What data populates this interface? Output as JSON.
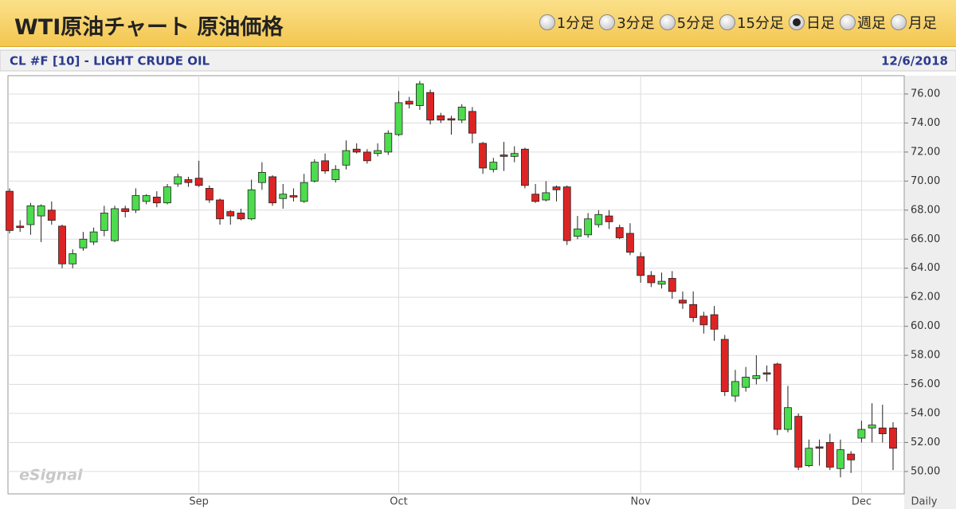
{
  "header": {
    "title": "WTI原油チャート 原油価格",
    "options": [
      "1分足",
      "3分足",
      "5分足",
      "15分足",
      "日足",
      "週足",
      "月足"
    ],
    "selected": 4
  },
  "chart_data": {
    "type": "candlestick",
    "title": "CL #F [10] - LIGHT CRUDE OIL",
    "date": "12/6/2018",
    "xlabel": "Daily",
    "watermark": "eSignal",
    "categories": [
      null,
      null,
      null,
      null,
      null,
      null,
      null,
      null,
      null,
      null,
      null,
      null,
      null,
      null,
      null,
      null,
      null,
      null,
      "Sep",
      null,
      null,
      null,
      null,
      null,
      null,
      null,
      null,
      null,
      null,
      null,
      null,
      null,
      null,
      null,
      null,
      null,
      null,
      "Oct",
      null,
      null,
      null,
      null,
      null,
      null,
      null,
      null,
      null,
      null,
      null,
      null,
      null,
      null,
      null,
      null,
      null,
      null,
      null,
      null,
      null,
      null,
      "Nov",
      null,
      null,
      null,
      null,
      null,
      null,
      null,
      null,
      null,
      null,
      null,
      null,
      null,
      null,
      null,
      null,
      null,
      null,
      null,
      null,
      "Dec",
      null,
      null,
      null
    ],
    "open": [
      69.3,
      66.9,
      67.0,
      67.6,
      68.0,
      66.9,
      64.3,
      65.4,
      65.8,
      66.6,
      65.9,
      68.1,
      68.0,
      68.6,
      68.9,
      68.5,
      69.8,
      70.1,
      70.2,
      69.5,
      68.7,
      67.9,
      67.8,
      67.4,
      69.9,
      70.3,
      68.8,
      69.0,
      68.6,
      70.0,
      71.4,
      70.1,
      71.1,
      72.2,
      72.0,
      71.9,
      72.0,
      73.2,
      75.5,
      75.2,
      76.1,
      74.5,
      74.3,
      74.2,
      74.8,
      72.6,
      70.8,
      71.8,
      71.7,
      72.2,
      69.1,
      68.7,
      69.6,
      69.6,
      66.2,
      66.3,
      67.0,
      67.6,
      66.8,
      66.4,
      64.8,
      63.5,
      62.9,
      63.3,
      61.8,
      61.5,
      60.7,
      60.8,
      59.1,
      55.2,
      55.8,
      56.4,
      56.8,
      57.4,
      52.9,
      53.8,
      50.4,
      51.7,
      52.0,
      50.2,
      51.2,
      52.3,
      53.0,
      53.0,
      53.0
    ],
    "high": [
      69.5,
      67.3,
      68.5,
      68.4,
      68.6,
      67.0,
      65.3,
      66.5,
      66.8,
      68.3,
      68.3,
      68.3,
      69.5,
      69.1,
      69.3,
      69.8,
      70.5,
      70.3,
      71.4,
      69.7,
      68.8,
      68.0,
      68.1,
      70.1,
      71.3,
      70.4,
      69.8,
      69.5,
      70.5,
      71.5,
      71.9,
      71.1,
      72.8,
      72.6,
      72.2,
      72.6,
      73.5,
      76.2,
      75.8,
      76.9,
      76.3,
      74.7,
      74.5,
      75.3,
      75.1,
      72.7,
      71.6,
      72.7,
      72.4,
      72.3,
      69.8,
      70.0,
      69.7,
      69.7,
      67.6,
      67.8,
      68.0,
      68.0,
      67.0,
      67.1,
      65.1,
      63.8,
      63.7,
      63.8,
      62.4,
      62.4,
      61.0,
      61.4,
      59.4,
      57.0,
      57.2,
      58.0,
      57.3,
      57.5,
      55.9,
      54.0,
      52.2,
      52.2,
      52.6,
      52.2,
      51.4,
      53.5,
      54.7,
      54.6,
      53.4
    ],
    "low": [
      66.4,
      66.5,
      66.3,
      65.8,
      67.0,
      64.0,
      64.0,
      65.2,
      65.6,
      66.2,
      65.8,
      67.5,
      67.8,
      68.4,
      68.2,
      68.4,
      69.6,
      69.6,
      69.6,
      68.5,
      67.0,
      67.0,
      67.3,
      67.3,
      69.4,
      68.3,
      68.1,
      68.6,
      68.5,
      69.9,
      70.5,
      69.9,
      70.8,
      71.9,
      71.2,
      71.7,
      71.8,
      73.1,
      75.0,
      74.9,
      73.9,
      74.0,
      73.2,
      74.0,
      72.6,
      70.5,
      70.6,
      70.7,
      71.3,
      69.5,
      68.5,
      68.6,
      68.6,
      65.6,
      66.0,
      66.1,
      66.8,
      66.7,
      66.0,
      64.9,
      63.0,
      62.7,
      62.6,
      61.9,
      61.2,
      60.3,
      59.5,
      59.0,
      55.2,
      54.8,
      55.5,
      56.0,
      56.2,
      52.5,
      52.7,
      50.1,
      50.3,
      50.4,
      50.1,
      49.6,
      49.9,
      52.0,
      52.0,
      52.0,
      50.1
    ],
    "close": [
      66.6,
      66.8,
      68.3,
      68.3,
      67.3,
      64.3,
      65.0,
      66.0,
      66.5,
      67.8,
      68.1,
      67.9,
      69.0,
      69.0,
      68.5,
      69.6,
      70.3,
      69.9,
      69.7,
      68.7,
      67.4,
      67.6,
      67.4,
      69.4,
      70.6,
      68.5,
      69.1,
      68.9,
      69.9,
      71.3,
      70.7,
      70.8,
      72.1,
      72.0,
      71.4,
      72.1,
      73.3,
      75.4,
      75.3,
      76.7,
      74.2,
      74.2,
      74.2,
      75.1,
      73.3,
      70.9,
      71.3,
      71.7,
      71.9,
      69.7,
      68.6,
      69.2,
      69.4,
      65.9,
      66.7,
      67.4,
      67.7,
      67.2,
      66.1,
      65.1,
      63.5,
      63.0,
      63.1,
      62.4,
      61.6,
      60.6,
      60.1,
      59.8,
      55.5,
      56.2,
      56.5,
      56.6,
      56.7,
      52.9,
      54.4,
      50.3,
      51.6,
      51.6,
      50.3,
      51.5,
      50.8,
      52.9,
      53.2,
      52.6,
      51.6
    ],
    "up_color": "#4ddc4d",
    "down_color": "#dd2424",
    "ylim": [
      48.46,
      77.26
    ],
    "yticks": [
      {
        "value": 50,
        "label": "50.00"
      },
      {
        "value": 52,
        "label": "52.00"
      },
      {
        "value": 54,
        "label": "54.00"
      },
      {
        "value": 56,
        "label": "56.00"
      },
      {
        "value": 58,
        "label": "58.00"
      },
      {
        "value": 60,
        "label": "60.00"
      },
      {
        "value": 62,
        "label": "62.00"
      },
      {
        "value": 64,
        "label": "64.00"
      },
      {
        "value": 66,
        "label": "66.00"
      },
      {
        "value": 68,
        "label": "68.00"
      },
      {
        "value": 70,
        "label": "70.00"
      },
      {
        "value": 72,
        "label": "72.00"
      },
      {
        "value": 74,
        "label": "74.00"
      },
      {
        "value": 76,
        "label": "76.00"
      }
    ],
    "grid": true
  }
}
